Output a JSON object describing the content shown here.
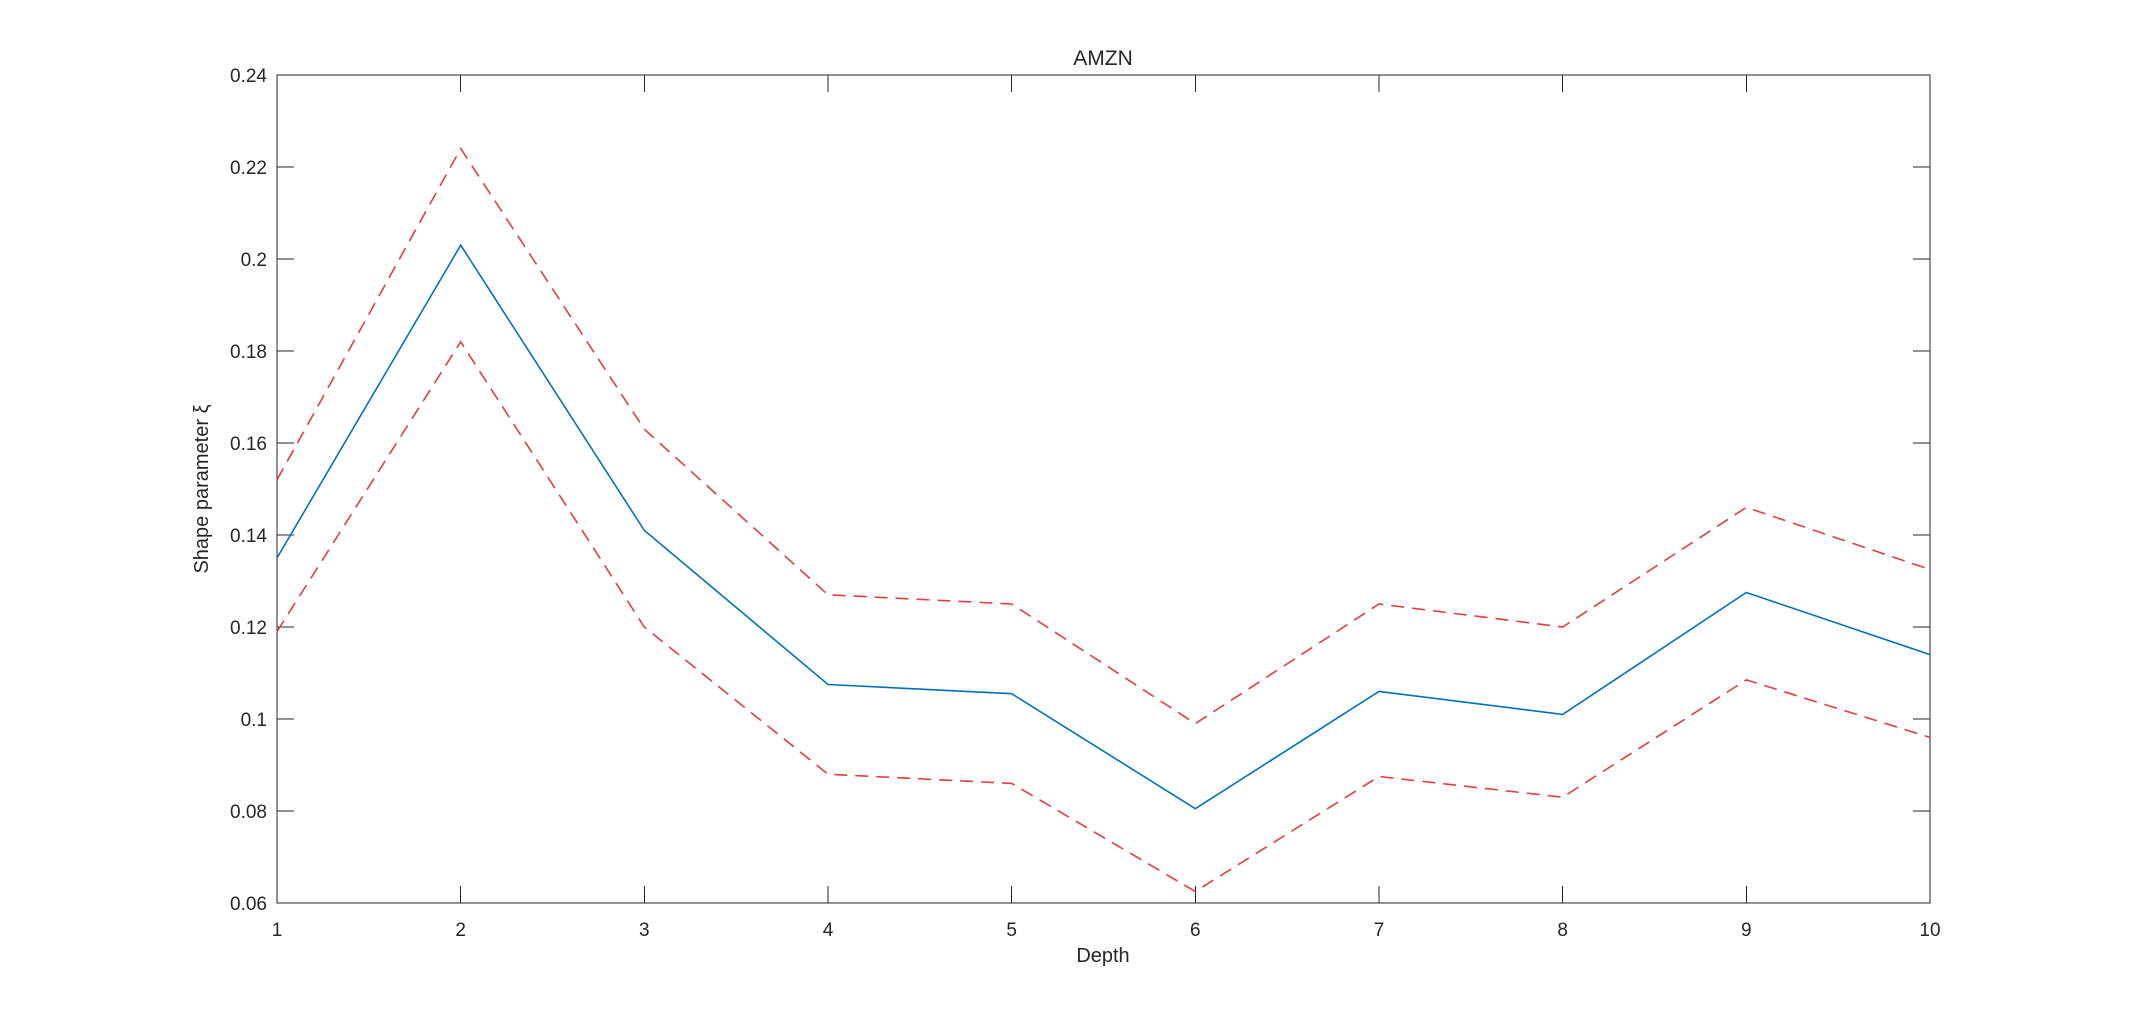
{
  "chart_data": {
    "type": "line",
    "title": "AMZN",
    "xlabel": "Depth",
    "ylabel": "Shape parameter ξ",
    "x": [
      1,
      2,
      3,
      4,
      5,
      6,
      7,
      8,
      9,
      10
    ],
    "series": [
      {
        "name": "blue-solid",
        "style": "solid",
        "color": "#0072bd",
        "values": [
          0.135,
          0.203,
          0.141,
          0.1075,
          0.1055,
          0.0805,
          0.106,
          0.101,
          0.1275,
          0.114
        ]
      },
      {
        "name": "red-dashed-upper",
        "style": "dashed",
        "color": "#e53c3c",
        "values": [
          0.152,
          0.224,
          0.163,
          0.127,
          0.125,
          0.099,
          0.125,
          0.12,
          0.146,
          0.1325
        ]
      },
      {
        "name": "red-dashed-lower",
        "style": "dashed",
        "color": "#e53c3c",
        "values": [
          0.119,
          0.182,
          0.12,
          0.088,
          0.086,
          0.0625,
          0.0875,
          0.083,
          0.1085,
          0.096
        ]
      }
    ],
    "xlim": [
      1,
      10
    ],
    "ylim": [
      0.06,
      0.24
    ],
    "xticks": {
      "values": [
        1,
        2,
        3,
        4,
        5,
        6,
        7,
        8,
        9,
        10
      ],
      "labels": [
        "1",
        "2",
        "3",
        "4",
        "5",
        "6",
        "7",
        "8",
        "9",
        "10"
      ]
    },
    "yticks": {
      "values": [
        0.06,
        0.08,
        0.1,
        0.12,
        0.14,
        0.16,
        0.18,
        0.2,
        0.22,
        0.24
      ],
      "labels": [
        "0.06",
        "0.08",
        "0.1",
        "0.12",
        "0.14",
        "0.16",
        "0.18",
        "0.2",
        "0.22",
        "0.24"
      ]
    },
    "grid": false,
    "legend_position": "none"
  },
  "colors": {
    "axis": "#262626",
    "background": "#ffffff"
  }
}
